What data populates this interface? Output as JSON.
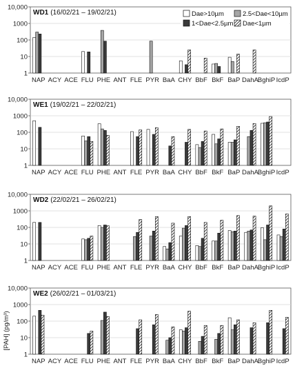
{
  "chart_data": {
    "type": "bar",
    "yscale": "log",
    "ylim": [
      1,
      10000
    ],
    "y_ticks": [
      "1",
      "10",
      "100",
      "1000",
      "10,000"
    ],
    "ylabel": "[PAH] (pg/m³)",
    "categories": [
      "NAP",
      "ACY",
      "ACE",
      "FLU",
      "PHE",
      "ANT",
      "FLE",
      "PYR",
      "BaA",
      "CHY",
      "BbF",
      "BkF",
      "BaP",
      "DahA",
      "BghiP",
      "IcdP"
    ],
    "series_names": [
      "Dae>10µm",
      "2.5<Dae<10µm",
      "1<Dae<2.5µm",
      "Dae<1µm"
    ],
    "legend_position": "top-right of first panel",
    "panels": [
      {
        "code": "WD1",
        "dates": "(16/02/21 – 19/02/21)",
        "values": [
          [
            140,
            300,
            230,
            null
          ],
          [
            null,
            null,
            null,
            null
          ],
          [
            null,
            null,
            null,
            null
          ],
          [
            20,
            null,
            19,
            null
          ],
          [
            null,
            380,
            85,
            null
          ],
          [
            null,
            null,
            null,
            null
          ],
          [
            null,
            null,
            null,
            null
          ],
          [
            null,
            85,
            null,
            null
          ],
          [
            null,
            null,
            null,
            null
          ],
          [
            5.5,
            null,
            3.2,
            25
          ],
          [
            null,
            null,
            null,
            8
          ],
          [
            3.5,
            3.8,
            2.5,
            null
          ],
          [
            9,
            5,
            null,
            14
          ],
          [
            null,
            null,
            null,
            25
          ],
          [
            null,
            null,
            null,
            null
          ],
          [
            null,
            null,
            null,
            null
          ]
        ]
      },
      {
        "code": "WE1",
        "dates": "(19/02/21 – 22/02/21)",
        "values": [
          [
            500,
            null,
            200,
            null
          ],
          [
            null,
            null,
            null,
            null
          ],
          [
            null,
            null,
            null,
            null
          ],
          [
            60,
            30,
            55,
            28
          ],
          [
            330,
            160,
            130,
            65
          ],
          [
            null,
            null,
            null,
            null
          ],
          [
            110,
            null,
            55,
            140
          ],
          [
            150,
            null,
            75,
            190
          ],
          [
            null,
            null,
            15,
            55
          ],
          [
            null,
            null,
            25,
            150
          ],
          [
            18,
            12,
            28,
            120
          ],
          [
            75,
            20,
            40,
            160
          ],
          [
            25,
            25,
            35,
            230
          ],
          [
            null,
            55,
            130,
            340
          ],
          [
            350,
            380,
            420,
            900
          ],
          [
            null,
            null,
            null,
            null
          ]
        ]
      },
      {
        "code": "WD2",
        "dates": "(22/02/21 – 26/02/21)",
        "values": [
          [
            200,
            null,
            200,
            null
          ],
          [
            null,
            null,
            null,
            null
          ],
          [
            null,
            null,
            null,
            null
          ],
          [
            20,
            18,
            22,
            30
          ],
          [
            130,
            100,
            140,
            125
          ],
          [
            null,
            null,
            null,
            null
          ],
          [
            null,
            28,
            50,
            300
          ],
          [
            null,
            30,
            60,
            450
          ],
          [
            7,
            5,
            12,
            180
          ],
          [
            30,
            90,
            130,
            450
          ],
          [
            8,
            7,
            22,
            200
          ],
          [
            15,
            15,
            45,
            270
          ],
          [
            65,
            55,
            60,
            520
          ],
          [
            50,
            60,
            70,
            480
          ],
          [
            95,
            18,
            140,
            2000
          ],
          [
            35,
            28,
            80,
            650
          ]
        ]
      },
      {
        "code": "WE2",
        "dates": "(26/02/21 – 01/03/21)",
        "values": [
          [
            200,
            null,
            450,
            230
          ],
          [
            null,
            null,
            null,
            null
          ],
          [
            null,
            null,
            null,
            null
          ],
          [
            null,
            null,
            18,
            25
          ],
          [
            null,
            110,
            350,
            190
          ],
          [
            null,
            null,
            null,
            null
          ],
          [
            null,
            null,
            35,
            120
          ],
          [
            null,
            null,
            60,
            250
          ],
          [
            null,
            7,
            10,
            45
          ],
          [
            30,
            25,
            40,
            400
          ],
          [
            null,
            6,
            12,
            55
          ],
          [
            null,
            8,
            18,
            55
          ],
          [
            160,
            30,
            60,
            120
          ],
          [
            null,
            null,
            40,
            80
          ],
          [
            null,
            null,
            80,
            450
          ],
          [
            null,
            null,
            35,
            170
          ]
        ]
      }
    ]
  }
}
